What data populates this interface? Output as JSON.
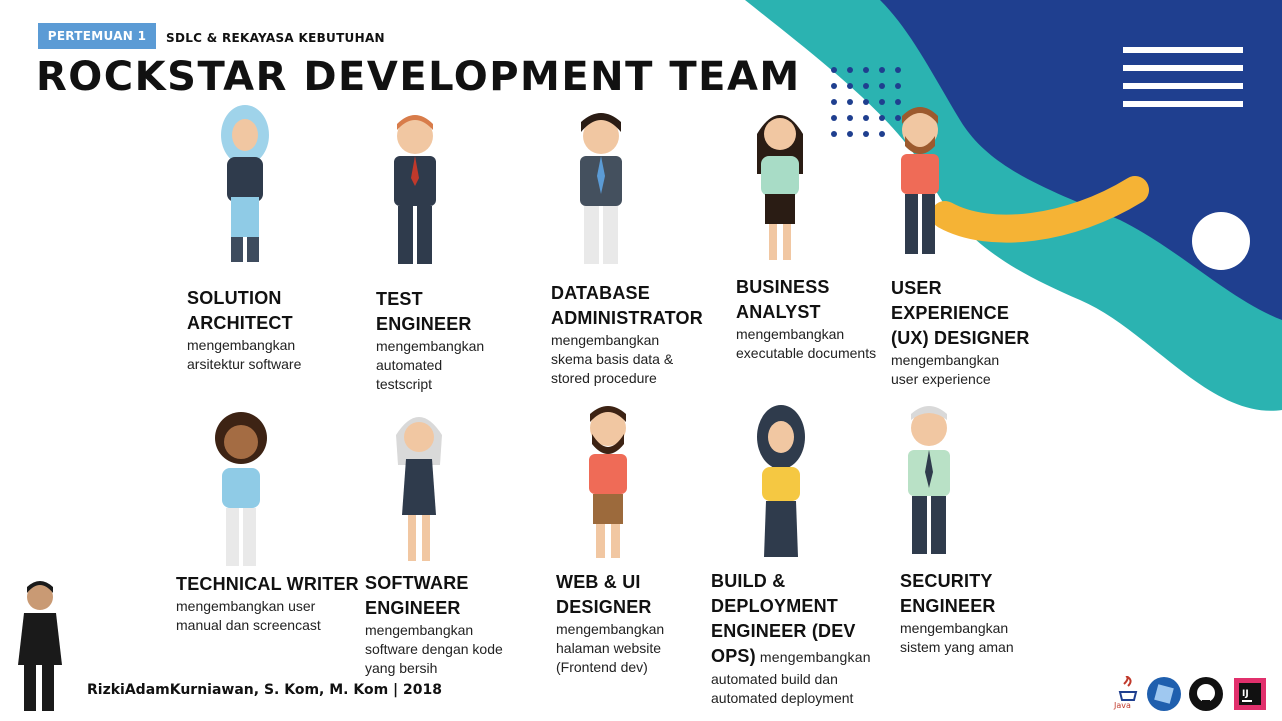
{
  "header": {
    "badge": "PERTEMUAN 1",
    "subtitle": "SDLC & REKAYASA KEBUTUHAN",
    "title": "ROCKSTAR DEVELOPMENT TEAM"
  },
  "roles": [
    {
      "title": "SOLUTION\nARCHITECT",
      "desc": "mengembangkan\narsitektur software"
    },
    {
      "title": "TEST\nENGINEER",
      "desc": "mengembangkan\nautomated\ntestscript"
    },
    {
      "title": "DATABASE\nADMINISTRATOR",
      "desc": "mengembangkan\nskema basis data &\nstored procedure"
    },
    {
      "title": "BUSINESS\nANALYST",
      "desc": "mengembangkan\nexecutable documents"
    },
    {
      "title": "USER\nEXPERIENCE\n(UX) DESIGNER",
      "desc": "mengembangkan\nuser experience"
    },
    {
      "title": "TECHNICAL WRITER",
      "desc": "mengembangkan user\nmanual dan screencast"
    },
    {
      "title": "SOFTWARE\nENGINEER",
      "desc": "mengembangkan\nsoftware dengan kode\nyang bersih"
    },
    {
      "title": "WEB & UI\nDESIGNER",
      "desc": "mengembangkan\nhalaman website\n(Frontend dev)"
    },
    {
      "title_a": "BUILD &\nDEPLOYMENT\nENGINEER (DEV\n",
      "title_b": "OPS)",
      "desc_inline": " mengembangkan",
      "desc": "automated build dan\nautomated deployment"
    },
    {
      "title": "SECURITY\nENGINEER",
      "desc": "mengembangkan\nsistem yang aman"
    }
  ],
  "footer": {
    "credit": "RizkiAdamKurniawan, S. Kom, M. Kom | 2018",
    "java_label": "Java",
    "tool_icons": [
      "java-icon",
      "virtualbox-icon",
      "github-icon",
      "intellij-icon"
    ]
  },
  "colors": {
    "badge": "#5b9bd5",
    "navy": "#1f3f8f",
    "teal": "#2bb3b1",
    "yellow": "#f5b335"
  }
}
